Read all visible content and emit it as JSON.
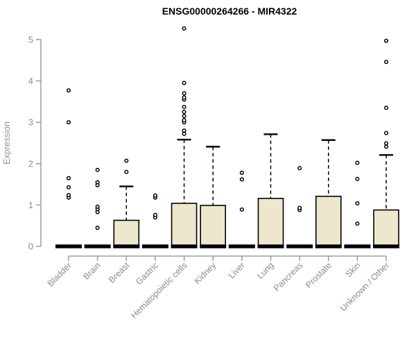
{
  "title": "ENSG00000264266 - MIR4322",
  "colors": {
    "background": "#ffffff",
    "box_fill": "#ece7cd",
    "box_stroke": "#000000",
    "median": "#000000",
    "whisker": "#000000",
    "outlier": "#000000",
    "axis": "#8c8c8c",
    "tick_label": "#8b8b8b",
    "title": "#000000"
  },
  "chart_data": {
    "type": "boxplot",
    "title": "ENSG00000264266 - MIR4322",
    "xlabel": "",
    "ylabel": "Expression",
    "ylim": [
      0,
      5
    ],
    "yticks": [
      0,
      1,
      2,
      3,
      4,
      5
    ],
    "grid": false,
    "legend": false,
    "categories": [
      "Bladder",
      "Brain",
      "Breast",
      "Gastric",
      "Hematopoietic cells",
      "Kidney",
      "Liver",
      "Lung",
      "Pancreas",
      "Prostate",
      "Skin",
      "Unknown / Other"
    ],
    "series": [
      {
        "category": "Bladder",
        "whisker_low": 0,
        "q1": 0,
        "median": 0,
        "q3": 0,
        "whisker_high": 0,
        "outliers": [
          1.18,
          1.24,
          1.43,
          1.65,
          3.0,
          3.77
        ]
      },
      {
        "category": "Brain",
        "whisker_low": 0,
        "q1": 0,
        "median": 0,
        "q3": 0,
        "whisker_high": 0,
        "outliers": [
          0.45,
          0.83,
          0.9,
          0.96,
          1.48,
          1.55,
          1.85
        ]
      },
      {
        "category": "Breast",
        "whisker_low": 0,
        "q1": 0,
        "median": 0,
        "q3": 0.63,
        "whisker_high": 1.45,
        "outliers": [
          1.8,
          2.07
        ]
      },
      {
        "category": "Gastric",
        "whisker_low": 0,
        "q1": 0,
        "median": 0,
        "q3": 0,
        "whisker_high": 0,
        "outliers": [
          0.7,
          0.76,
          1.18,
          1.23
        ]
      },
      {
        "category": "Hematopoietic cells",
        "whisker_low": 0,
        "q1": 0,
        "median": 0,
        "q3": 1.04,
        "whisker_high": 2.58,
        "outliers": [
          2.72,
          2.8,
          3.0,
          3.05,
          3.15,
          3.25,
          3.37,
          3.55,
          3.6,
          3.7,
          3.95,
          5.27
        ]
      },
      {
        "category": "Kidney",
        "whisker_low": 0,
        "q1": 0,
        "median": 0,
        "q3": 0.99,
        "whisker_high": 2.41,
        "outliers": []
      },
      {
        "category": "Liver",
        "whisker_low": 0,
        "q1": 0,
        "median": 0,
        "q3": 0,
        "whisker_high": 0,
        "outliers": [
          0.89,
          1.62,
          1.78
        ]
      },
      {
        "category": "Lung",
        "whisker_low": 0,
        "q1": 0,
        "median": 0,
        "q3": 1.16,
        "whisker_high": 2.71,
        "outliers": []
      },
      {
        "category": "Pancreas",
        "whisker_low": 0,
        "q1": 0,
        "median": 0,
        "q3": 0,
        "whisker_high": 0,
        "outliers": [
          0.88,
          0.93,
          1.89
        ]
      },
      {
        "category": "Prostate",
        "whisker_low": 0,
        "q1": 0,
        "median": 0,
        "q3": 1.21,
        "whisker_high": 2.57,
        "outliers": []
      },
      {
        "category": "Skin",
        "whisker_low": 0,
        "q1": 0,
        "median": 0,
        "q3": 0,
        "whisker_high": 0,
        "outliers": [
          0.55,
          1.04,
          1.63,
          2.02
        ]
      },
      {
        "category": "Unknown / Other",
        "whisker_low": 0,
        "q1": 0,
        "median": 0,
        "q3": 0.88,
        "whisker_high": 2.21,
        "outliers": [
          2.41,
          2.49,
          2.74,
          3.35,
          4.46,
          4.97
        ]
      }
    ]
  }
}
